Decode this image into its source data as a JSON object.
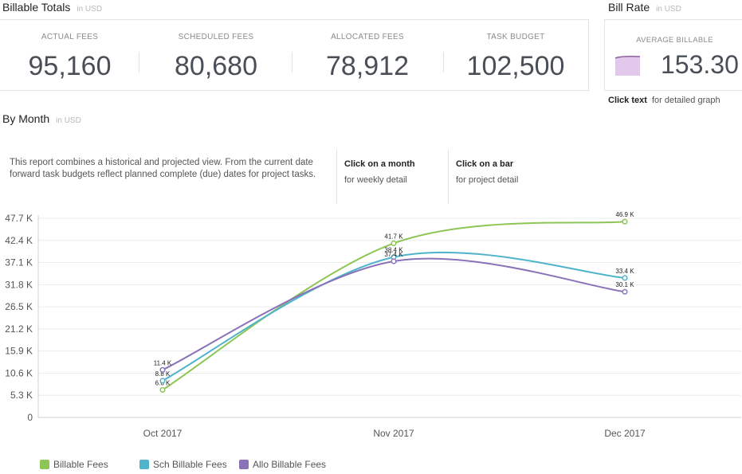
{
  "billable_totals": {
    "title": "Billable Totals",
    "unit": "in USD",
    "metrics": [
      {
        "label": "ACTUAL FEES",
        "value": "95,160"
      },
      {
        "label": "SCHEDULED FEES",
        "value": "80,680"
      },
      {
        "label": "ALLOCATED FEES",
        "value": "78,912"
      },
      {
        "label": "TASK BUDGET",
        "value": "102,500"
      }
    ]
  },
  "bill_rate": {
    "title": "Bill Rate",
    "unit": "in USD",
    "label": "AVERAGE BILLABLE",
    "value": "153.30",
    "click_text": "Click text",
    "click_desc": "for detailed graph"
  },
  "by_month": {
    "title": "By Month",
    "unit": "in USD",
    "note": "This report combines a historical and projected view.  From the current date forward task budgets reflect planned complete (due) dates for project tasks.",
    "hint1_title": "Click on a month",
    "hint1_sub": "for weekly detail",
    "hint2_title": "Click on a bar",
    "hint2_sub": "for project detail"
  },
  "colors": {
    "billable": "#8dc556",
    "scheduled": "#4fb3c9",
    "allocated": "#8a72b8",
    "sparkline_fill": "#e2c8ea",
    "sparkline_line": "#8a5f9e"
  },
  "chart_data": {
    "type": "line",
    "categories": [
      "Oct 2017",
      "Nov 2017",
      "Dec 2017"
    ],
    "y_ticks": [
      "0",
      "5.3 K",
      "10.6 K",
      "15.9 K",
      "21.2 K",
      "26.5 K",
      "31.8 K",
      "37.1 K",
      "42.4 K",
      "47.7 K"
    ],
    "ylim": [
      0,
      47.7
    ],
    "series": [
      {
        "name": "Billable Fees",
        "color_key": "billable",
        "values": [
          6.6,
          41.7,
          46.9
        ],
        "labels": [
          "6.6 K",
          "41.7 K",
          "46.9 K"
        ]
      },
      {
        "name": "Sch Billable Fees",
        "color_key": "scheduled",
        "values": [
          8.8,
          38.4,
          33.4
        ],
        "labels": [
          "8.8 K",
          "38.4 K",
          "33.4 K"
        ]
      },
      {
        "name": "Allo Billable Fees",
        "color_key": "allocated",
        "values": [
          11.4,
          37.4,
          30.1
        ],
        "labels": [
          "11.4 K",
          "37.4 K",
          "30.1 K"
        ]
      }
    ],
    "grid": true,
    "legend": "bottom-left"
  }
}
